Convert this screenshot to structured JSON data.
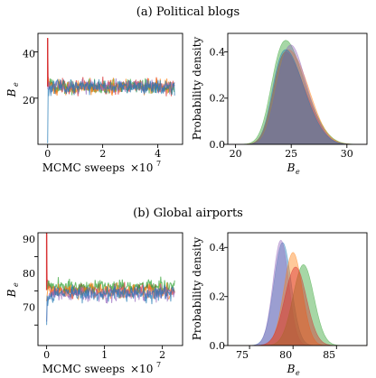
{
  "panels": [
    {
      "title": "(a) Political blogs",
      "trace": {
        "xlabel": "MCMC sweeps",
        "xscale_base": "×10",
        "xscale_exp": "7",
        "ylabel_main": "B",
        "ylabel_sub": "e",
        "xticks": [
          "0",
          "2",
          "4"
        ],
        "yticks": [
          "20",
          "40"
        ]
      },
      "density": {
        "ylabel": "Probability density",
        "xlabel_main": "B",
        "xlabel_sub": "e",
        "xticks": [
          "20",
          "25",
          "30"
        ],
        "yticks": [
          "0.0",
          "0.2",
          "0.4"
        ]
      }
    },
    {
      "title": "(b) Global airports",
      "trace": {
        "xlabel": "MCMC sweeps",
        "xscale_base": "×10",
        "xscale_exp": "7",
        "ylabel_main": "B",
        "ylabel_sub": "e",
        "xticks": [
          "0",
          "1",
          "2"
        ],
        "yticks": [
          "70",
          "80",
          "90"
        ]
      },
      "density": {
        "ylabel": "Probability density",
        "xlabel_main": "B",
        "xlabel_sub": "e",
        "xticks": [
          "75",
          "80",
          "85"
        ],
        "yticks": [
          "0.0",
          "0.2",
          "0.4"
        ]
      }
    }
  ],
  "chart_data": [
    {
      "type": "line",
      "xlabel": "MCMC sweeps ×10^7",
      "ylabel": "B_e",
      "xlim": [
        -0.35,
        4.9
      ],
      "ylim": [
        0,
        48
      ],
      "series": [
        {
          "color": "#d62728",
          "start": 46,
          "level": 25.0,
          "spread": 2.4
        },
        {
          "color": "#2ca02c",
          "start": 28,
          "level": 25.0,
          "spread": 2.4
        },
        {
          "color": "#ff7f0e",
          "start": 26,
          "level": 25.0,
          "spread": 2.4
        },
        {
          "color": "#9467bd",
          "start": 24,
          "level": 25.0,
          "spread": 2.4
        },
        {
          "color": "#1f77b4",
          "start": 0.5,
          "level": 25.0,
          "spread": 2.4
        }
      ]
    },
    {
      "type": "area",
      "xlabel": "B_e",
      "ylabel": "Probability density",
      "xlim": [
        19.3,
        31.8
      ],
      "ylim": [
        0,
        0.48
      ],
      "series": [
        {
          "color": "#2ca02c",
          "components": [
            [
              0.38,
              23.8,
              0.9
            ],
            [
              0.32,
              24.9,
              1.0
            ],
            [
              0.3,
              26.0,
              1.4
            ]
          ]
        },
        {
          "color": "#d62728",
          "components": [
            [
              0.3,
              23.9,
              0.8
            ],
            [
              0.36,
              24.7,
              1.0
            ],
            [
              0.34,
              26.0,
              1.3
            ]
          ]
        },
        {
          "color": "#ff7f0e",
          "components": [
            [
              0.38,
              24.0,
              0.9
            ],
            [
              0.34,
              25.2,
              1.1
            ],
            [
              0.28,
              26.2,
              1.3
            ]
          ]
        },
        {
          "color": "#9467bd",
          "components": [
            [
              0.25,
              23.9,
              0.8
            ],
            [
              0.45,
              25.0,
              0.9
            ],
            [
              0.3,
              26.2,
              1.2
            ]
          ]
        },
        {
          "color": "#1f77b4",
          "components": [
            [
              0.32,
              23.8,
              0.8
            ],
            [
              0.4,
              24.8,
              1.0
            ],
            [
              0.28,
              26.0,
              1.3
            ]
          ]
        }
      ]
    },
    {
      "type": "line",
      "xlabel": "MCMC sweeps ×10^7",
      "ylabel": "B_e",
      "xlim": [
        -0.15,
        2.35
      ],
      "ylim": [
        64,
        97
      ],
      "series": [
        {
          "color": "#d62728",
          "start": 97,
          "level": 80.2,
          "spread": 1.7
        },
        {
          "color": "#2ca02c",
          "start": 83,
          "level": 81.3,
          "spread": 1.7
        },
        {
          "color": "#ff7f0e",
          "start": 77,
          "level": 79.8,
          "spread": 1.7
        },
        {
          "color": "#9467bd",
          "start": 71,
          "level": 79.0,
          "spread": 1.7
        },
        {
          "color": "#1f77b4",
          "start": 70,
          "level": 79.2,
          "spread": 1.7
        }
      ]
    },
    {
      "type": "area",
      "xlabel": "B_e",
      "ylabel": "Probability density",
      "xlim": [
        72.5,
        88.5
      ],
      "ylim": [
        0,
        0.46
      ],
      "series": [
        {
          "color": "#1f77b4",
          "components": [
            [
              1.0,
              78.8,
              1.0
            ]
          ]
        },
        {
          "color": "#9467bd",
          "components": [
            [
              1.0,
              78.6,
              0.9
            ]
          ]
        },
        {
          "color": "#2ca02c",
          "components": [
            [
              1.0,
              81.2,
              1.2
            ]
          ]
        },
        {
          "color": "#ff7f0e",
          "components": [
            [
              1.0,
              80.0,
              1.05
            ]
          ]
        },
        {
          "color": "#d62728",
          "components": [
            [
              1.0,
              80.3,
              1.25
            ]
          ]
        }
      ]
    }
  ]
}
